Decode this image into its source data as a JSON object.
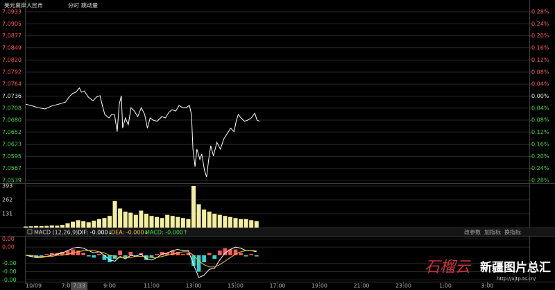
{
  "header": {
    "symbol": "美元离岸人民币",
    "tab_time": "分时",
    "tab_tick": "跳动量"
  },
  "indicator_bar": {
    "name": "MACD (12,26,9)",
    "dif": "DIF: -0.000↓",
    "dea": "DEA: -0.000↓",
    "macd": "MACD: -0.000↑",
    "buttons": [
      "改参数",
      "加指标",
      "换指标"
    ]
  },
  "watermark": {
    "logo": "石榴云",
    "title": "新疆图片总汇",
    "url": "http://xjtp.ts.cn/"
  },
  "chart_data": [
    {
      "type": "line",
      "grid": true,
      "x": [
        5.0,
        5.26,
        5.59,
        5.92,
        6.25,
        6.57,
        6.9,
        7.07,
        7.23,
        7.39,
        7.56,
        7.66,
        7.79,
        7.98,
        8.21,
        8.38,
        8.54,
        8.64,
        8.77,
        8.97,
        9.1,
        9.23,
        9.36,
        9.46,
        9.56,
        9.62,
        9.75,
        9.89,
        10.02,
        10.18,
        10.34,
        10.51,
        10.67,
        10.8,
        10.93,
        11.07,
        11.26,
        11.49,
        11.66,
        11.82,
        11.98,
        12.15,
        12.31,
        12.48,
        12.64,
        12.8,
        12.9,
        12.97,
        13.07,
        13.16,
        13.3,
        13.39,
        13.52,
        13.62,
        13.72,
        13.82,
        13.95,
        14.11,
        14.28,
        14.44,
        14.61,
        14.77,
        14.93,
        15.03,
        15.13,
        15.26,
        15.43,
        15.59,
        15.75,
        15.92,
        16.02,
        16.15
      ],
      "series": [
        {
          "color": "#ffffff",
          "values": [
            7.0717,
            7.0714,
            7.0709,
            7.0706,
            7.0713,
            7.0717,
            7.0722,
            7.0734,
            7.0742,
            7.0745,
            7.0755,
            7.0745,
            7.0748,
            7.0734,
            7.0725,
            7.0734,
            7.0737,
            7.0717,
            7.0693,
            7.0685,
            7.0693,
            7.0693,
            7.0653,
            7.0717,
            7.0737,
            7.0661,
            7.0685,
            7.0669,
            7.0709,
            7.0701,
            7.0688,
            7.0709,
            7.0693,
            7.0661,
            7.0685,
            7.068,
            7.0677,
            7.0688,
            7.0685,
            7.0698,
            7.0704,
            7.0701,
            7.0714,
            7.0709,
            7.0709,
            7.0714,
            7.0693,
            7.0612,
            7.0571,
            7.0612,
            7.0588,
            7.0601,
            7.0563,
            7.0547,
            7.0588,
            7.062,
            7.0596,
            7.0628,
            7.0612,
            7.0636,
            7.0649,
            7.0661,
            7.0653,
            7.0677,
            7.0693,
            7.0685,
            7.0677,
            7.068,
            7.0685,
            7.0696,
            7.068,
            7.0677
          ]
        }
      ],
      "xlim": [
        5,
        29
      ],
      "ylim": [
        7.0539,
        7.0933
      ],
      "yticks": [
        7.0933,
        7.0905,
        7.0877,
        7.0849,
        {
          "value": 7.082,
          "label": "7.0820"
        },
        7.0792,
        7.0764,
        7.0736,
        7.0708,
        {
          "value": 7.068,
          "label": "7.0680"
        },
        7.0652,
        7.0623,
        7.0595,
        7.0567,
        7.0539
      ],
      "y2lim": [
        -0.28,
        0.28
      ],
      "y2ticks": [
        {
          "value": 0.28,
          "label": "0.28%"
        },
        {
          "value": 0.24,
          "label": "0.24%"
        },
        {
          "value": 0.2,
          "label": "0.20%"
        },
        {
          "value": 0.16,
          "label": "0.16%"
        },
        {
          "value": 0.12,
          "label": "0.12%"
        },
        {
          "value": 0.08,
          "label": "0.08%"
        },
        {
          "value": 0.04,
          "label": "0.04%"
        },
        {
          "value": 0,
          "label": "0.00%"
        },
        {
          "value": -0.04,
          "label": "0.04%"
        },
        {
          "value": -0.08,
          "label": "0.08%"
        },
        {
          "value": -0.12,
          "label": "0.12%"
        },
        {
          "value": -0.16,
          "label": "0.16%"
        },
        {
          "value": -0.2,
          "label": "0.20%"
        },
        {
          "value": -0.24,
          "label": "0.24%"
        },
        {
          "value": -0.28,
          "label": "0.28%"
        }
      ]
    },
    {
      "type": "bar",
      "grid": true,
      "color": "#f3eea0",
      "x": [
        5,
        5.25,
        5.5,
        5.75,
        6,
        6.25,
        6.5,
        6.75,
        7,
        7.25,
        7.5,
        7.75,
        8,
        8.25,
        8.5,
        8.75,
        9,
        9.25,
        9.5,
        9.75,
        10,
        10.25,
        10.5,
        10.75,
        11,
        11.25,
        11.5,
        11.75,
        12,
        12.25,
        12.5,
        12.75,
        13,
        13.25,
        13.5,
        13.75,
        14,
        14.25,
        14.5,
        14.75,
        15,
        15.25,
        15.5,
        15.75,
        16
      ],
      "values": [
        10,
        12,
        15,
        14,
        16,
        20,
        18,
        25,
        40,
        55,
        70,
        60,
        50,
        65,
        80,
        90,
        110,
        250,
        180,
        150,
        140,
        120,
        160,
        130,
        110,
        100,
        90,
        120,
        110,
        100,
        90,
        80,
        393,
        220,
        170,
        150,
        130,
        120,
        110,
        100,
        90,
        80,
        80,
        70,
        60
      ],
      "xlim": [
        5,
        29
      ],
      "ylim": [
        0,
        419
      ],
      "yticks": [
        131,
        262,
        393
      ]
    },
    {
      "type": "macd",
      "grid": true,
      "x": [
        5,
        5.25,
        5.5,
        5.75,
        6,
        6.25,
        6.5,
        6.75,
        7,
        7.25,
        7.5,
        7.75,
        8,
        8.25,
        8.5,
        8.75,
        9,
        9.25,
        9.5,
        9.75,
        10,
        10.25,
        10.5,
        10.75,
        11,
        11.25,
        11.5,
        11.75,
        12,
        12.25,
        12.5,
        12.75,
        13,
        13.25,
        13.5,
        13.75,
        14,
        14.25,
        14.5,
        14.75,
        15,
        15.25,
        15.5,
        15.75,
        16
      ],
      "series": [
        {
          "kind": "bar",
          "color": "#ff5a5a",
          "negative_color": "#2fd3d3",
          "values": [
            0,
            -0.0001,
            -0.0002,
            -0.0001,
            0.0001,
            0.0002,
            0.0002,
            0.0003,
            0.0004,
            0.0005,
            0.0004,
            0.0002,
            -0.0001,
            -0.0002,
            0.0001,
            -0.0004,
            -0.0006,
            -0.0003,
            0.0004,
            -0.0002,
            0.0003,
            -0.0001,
            0.0002,
            -0.0004,
            -0.0002,
            0.0001,
            0.0003,
            0.0002,
            0.0004,
            0.0003,
            0.0001,
            0.0002,
            -0.0009,
            -0.0014,
            -0.0006,
            0.0002,
            -0.0003,
            0.0004,
            0.0006,
            0.0005,
            0.0005,
            0.0002,
            -0.0001,
            0.0001,
            -0.0001
          ]
        },
        {
          "kind": "line",
          "color": "#ffffff",
          "values": [
            0,
            -0.0001,
            -0.0002,
            -0.0002,
            -0.0001,
            0,
            0.0001,
            0.0002,
            0.0004,
            0.0006,
            0.0007,
            0.0006,
            0.0004,
            0.0002,
            0.0003,
            0,
            -0.0004,
            -0.0005,
            -0.0001,
            -0.0003,
            0,
            -0.0001,
            0.0001,
            -0.0003,
            -0.0004,
            -0.0002,
            0.0001,
            0.0002,
            0.0004,
            0.0005,
            0.0004,
            0.0004,
            -0.0008,
            -0.0019,
            -0.0017,
            -0.0012,
            -0.0011,
            -0.0004,
            0.0002,
            0.0005,
            0.0007,
            0.0006,
            0.0004,
            0.0004,
            0.0003
          ]
        },
        {
          "kind": "line",
          "color": "#f0c030",
          "values": [
            0,
            0,
            -0.0001,
            -0.0001,
            -0.0001,
            -0.0001,
            0,
            0,
            0.0001,
            0.0002,
            0.0003,
            0.0004,
            0.0004,
            0.0004,
            0.0003,
            0.0002,
            0,
            -0.0001,
            -0.0002,
            -0.0002,
            -0.0002,
            -0.0001,
            -0.0001,
            -0.0001,
            -0.0002,
            -0.0002,
            -0.0001,
            0,
            0.0001,
            0.0002,
            0.0003,
            0.0003,
            0,
            -0.0005,
            -0.0008,
            -0.001,
            -0.001,
            -0.0008,
            -0.0005,
            -0.0002,
            0.0001,
            0.0003,
            0.0004,
            0.0004,
            0.0004
          ]
        }
      ],
      "xlim": [
        5,
        29
      ],
      "ylim": [
        -0.0022,
        0.0016
      ],
      "yticks": [
        {
          "value": 0.0014,
          "label": "0.00"
        },
        {
          "value": 0.0007,
          "label": "0.00"
        },
        {
          "value": -0.0007,
          "label": "-0.00"
        },
        {
          "value": -0.0014,
          "label": "-0.00"
        },
        {
          "value": -0.0021,
          "label": "-0.00"
        }
      ],
      "xticks": [
        {
          "value": 5,
          "label": "10/09"
        },
        {
          "value": 7,
          "label": "7:00"
        },
        {
          "value": 7.55,
          "label": "7:33",
          "highlight": true
        },
        {
          "value": 9,
          "label": "9:00"
        },
        {
          "value": 11,
          "label": "11:00"
        },
        {
          "value": 13,
          "label": "13:00"
        },
        {
          "value": 15,
          "label": "15:00"
        },
        {
          "value": 17,
          "label": "17:00"
        },
        {
          "value": 19,
          "label": "19:00"
        },
        {
          "value": 21,
          "label": "21:00"
        },
        {
          "value": 23,
          "label": "23:00"
        },
        {
          "value": 25,
          "label": "1:00"
        },
        {
          "value": 27,
          "label": "3:00"
        }
      ]
    }
  ]
}
